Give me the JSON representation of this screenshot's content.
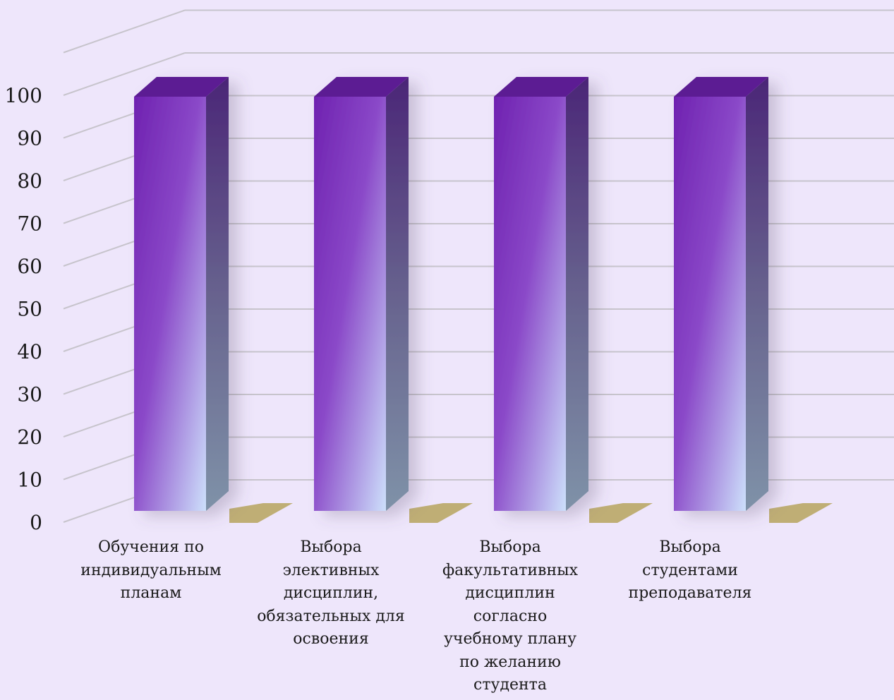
{
  "chart_data": {
    "type": "bar",
    "style": "3d-column",
    "categories": [
      "Обучения по индивидуальным планам",
      "Выбора элективных дисциплин, обязательных для освоения",
      "Выбора факультативных дисциплин согласно учебному плану по желанию студента",
      "Выбора студентами преподавателя"
    ],
    "category_lines": [
      [
        "Обучения по",
        "индивидуальным",
        "планам"
      ],
      [
        "Выбора",
        "элективных",
        "дисциплин,",
        "обязательных для",
        "освоения"
      ],
      [
        "Выбора",
        "факультативных",
        "дисциплин",
        "согласно",
        "учебному плану",
        "по желанию",
        "студента"
      ],
      [
        "Выбора",
        "студентами",
        "преподавателя"
      ]
    ],
    "series": [
      {
        "values": [
          100,
          100,
          100,
          100
        ],
        "color": "#7a2fb8"
      },
      {
        "values": [
          0,
          0,
          0,
          0
        ],
        "color": "#b9a766"
      }
    ],
    "y_ticks": [
      "0",
      "10",
      "20",
      "30",
      "40",
      "50",
      "60",
      "70",
      "80",
      "90",
      "100"
    ],
    "ylim": [
      0,
      110
    ],
    "grid": true,
    "background": "#eee6fb",
    "grid_color": "#c7c4cc"
  }
}
